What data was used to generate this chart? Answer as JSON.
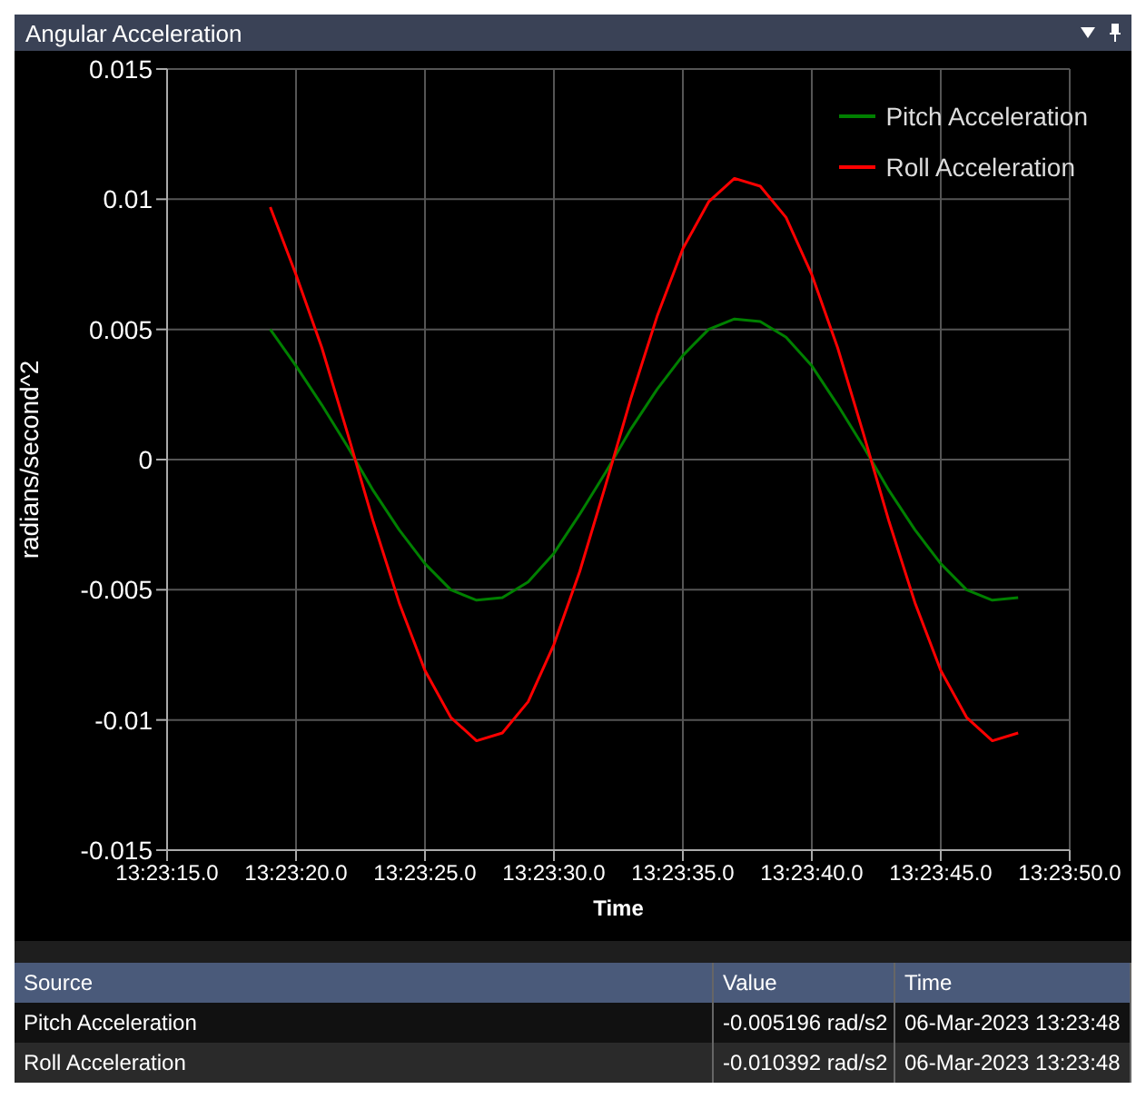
{
  "chart_data": {
    "type": "line",
    "title": "Angular Acceleration",
    "xlabel": "Time",
    "ylabel": "radians/second^2",
    "categories": [
      "13:23:15.0",
      null,
      null,
      null,
      null,
      "13:23:20.0",
      null,
      null,
      null,
      null,
      "13:23:25.0",
      null,
      null,
      null,
      null,
      "13:23:30.0",
      null,
      null,
      null,
      null,
      "13:23:35.0",
      null,
      null,
      null,
      null,
      "13:23:40.0",
      null,
      null,
      null,
      null,
      "13:23:45.0",
      null,
      null,
      null,
      null,
      "13:23:50.0"
    ],
    "series": [
      {
        "name": "Pitch Acceleration",
        "color": "#008000",
        "values": [
          null,
          null,
          null,
          null,
          0.005,
          0.0036,
          0.0021,
          0.0005,
          -0.0012,
          -0.0027,
          -0.004,
          -0.005,
          -0.0054,
          -0.0053,
          -0.0047,
          -0.0036,
          -0.0021,
          -0.0005,
          0.0012,
          0.0027,
          0.004,
          0.005,
          0.0054,
          0.0053,
          0.0047,
          0.0036,
          0.0021,
          0.0005,
          -0.0012,
          -0.0027,
          -0.004,
          -0.005,
          -0.0054,
          -0.0053,
          null,
          null
        ]
      },
      {
        "name": "Roll Acceleration",
        "color": "#ff0000",
        "values": [
          null,
          null,
          null,
          null,
          0.0097,
          0.0071,
          0.0043,
          0.001,
          -0.0024,
          -0.0055,
          -0.0081,
          -0.0099,
          -0.0108,
          -0.0105,
          -0.0093,
          -0.0071,
          -0.0043,
          -0.001,
          0.0024,
          0.0055,
          0.0081,
          0.0099,
          0.0108,
          0.0105,
          0.0093,
          0.0071,
          0.0043,
          0.001,
          -0.0024,
          -0.0055,
          -0.0081,
          -0.0099,
          -0.0108,
          -0.0105,
          null,
          null
        ]
      }
    ],
    "ylim": [
      -0.015,
      0.015
    ],
    "yticks": [
      -0.015,
      -0.01,
      -0.005,
      0,
      0.005,
      0.01,
      0.015
    ],
    "grid": true,
    "legend": "top right",
    "marker": "none",
    "line_style": "solid",
    "annotations": [
      "Source",
      "Value",
      "Time",
      "Pitch Acceleration",
      "-0.005196 rad/s2",
      "06-Mar-2023 13:23:48",
      "Roll Acceleration",
      "-0.010392 rad/s2",
      "06-Mar-2023 13:23:48"
    ]
  }
}
